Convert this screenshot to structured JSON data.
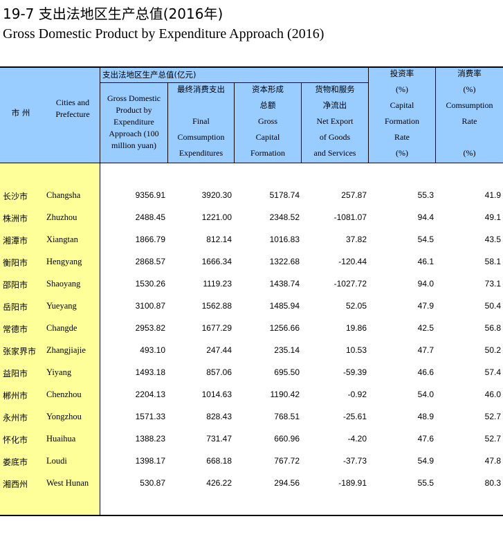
{
  "title_cn": "19-7  支出法地区生产总值(2016年)",
  "title_en": "Gross Domestic Product by Expenditure Approach (2016)",
  "header": {
    "city_cn": "市 州",
    "city_en_1": "Cities and",
    "city_en_2": "Prefecture",
    "group_label": "支出法地区生产总值(亿元)",
    "gdp_1": "Gross Domestic",
    "gdp_2": "Product by",
    "gdp_3": "Expenditure",
    "gdp_4": "Approach (100",
    "gdp_5": "million yuan)",
    "fce_cn": "最终消费支出",
    "fce_1": "Final",
    "fce_2": "Comsumption",
    "fce_3": "Expenditures",
    "gcf_cn1": "资本形成",
    "gcf_cn2": "总额",
    "gcf_1": "Gross",
    "gcf_2": "Capital",
    "gcf_3": "Formation",
    "nx_cn1": "货物和服务",
    "nx_cn2": "净流出",
    "nx_1": "Net Export",
    "nx_2": "of Goods",
    "nx_3": "and Services",
    "inv_cn": "投资率",
    "inv_pct": "(%)",
    "inv_1": "Capital",
    "inv_2": "Formation",
    "inv_3": "Rate",
    "inv_pct2": "(%)",
    "con_cn": "消费率",
    "con_pct": "(%)",
    "con_1": "Comsumption",
    "con_2": "Rate",
    "con_pct2": "(%)"
  },
  "rows": [
    {
      "cn": "长沙市",
      "en": "Changsha",
      "gdp": "9356.91",
      "fce": "3920.30",
      "gcf": "5178.74",
      "nx": "257.87",
      "inv": "55.3",
      "con": "41.9"
    },
    {
      "cn": "株洲市",
      "en": "Zhuzhou",
      "gdp": "2488.45",
      "fce": "1221.00",
      "gcf": "2348.52",
      "nx": "-1081.07",
      "inv": "94.4",
      "con": "49.1"
    },
    {
      "cn": "湘潭市",
      "en": "Xiangtan",
      "gdp": "1866.79",
      "fce": "812.14",
      "gcf": "1016.83",
      "nx": "37.82",
      "inv": "54.5",
      "con": "43.5"
    },
    {
      "cn": "衡阳市",
      "en": "Hengyang",
      "gdp": "2868.57",
      "fce": "1666.34",
      "gcf": "1322.68",
      "nx": "-120.44",
      "inv": "46.1",
      "con": "58.1"
    },
    {
      "cn": "邵阳市",
      "en": "Shaoyang",
      "gdp": "1530.26",
      "fce": "1119.23",
      "gcf": "1438.74",
      "nx": "-1027.72",
      "inv": "94.0",
      "con": "73.1"
    },
    {
      "cn": "岳阳市",
      "en": "Yueyang",
      "gdp": "3100.87",
      "fce": "1562.88",
      "gcf": "1485.94",
      "nx": "52.05",
      "inv": "47.9",
      "con": "50.4"
    },
    {
      "cn": "常德市",
      "en": "Changde",
      "gdp": "2953.82",
      "fce": "1677.29",
      "gcf": "1256.66",
      "nx": "19.86",
      "inv": "42.5",
      "con": "56.8"
    },
    {
      "cn": "张家界市",
      "en": "Zhangjiajie",
      "gdp": "493.10",
      "fce": "247.44",
      "gcf": "235.14",
      "nx": "10.53",
      "inv": "47.7",
      "con": "50.2"
    },
    {
      "cn": "益阳市",
      "en": "Yiyang",
      "gdp": "1493.18",
      "fce": "857.06",
      "gcf": "695.50",
      "nx": "-59.39",
      "inv": "46.6",
      "con": "57.4"
    },
    {
      "cn": "郴州市",
      "en": "Chenzhou",
      "gdp": "2204.13",
      "fce": "1014.63",
      "gcf": "1190.42",
      "nx": "-0.92",
      "inv": "54.0",
      "con": "46.0"
    },
    {
      "cn": "永州市",
      "en": "Yongzhou",
      "gdp": "1571.33",
      "fce": "828.43",
      "gcf": "768.51",
      "nx": "-25.61",
      "inv": "48.9",
      "con": "52.7"
    },
    {
      "cn": "怀化市",
      "en": "Huaihua",
      "gdp": "1388.23",
      "fce": "731.47",
      "gcf": "660.96",
      "nx": "-4.20",
      "inv": "47.6",
      "con": "52.7"
    },
    {
      "cn": "娄底市",
      "en": "Loudi",
      "gdp": "1398.17",
      "fce": "668.18",
      "gcf": "767.72",
      "nx": "-37.73",
      "inv": "54.9",
      "con": "47.8"
    },
    {
      "cn": "湘西州",
      "en": "West Hunan",
      "gdp": "530.87",
      "fce": "426.22",
      "gcf": "294.56",
      "nx": "-189.91",
      "inv": "55.5",
      "con": "80.3"
    }
  ]
}
